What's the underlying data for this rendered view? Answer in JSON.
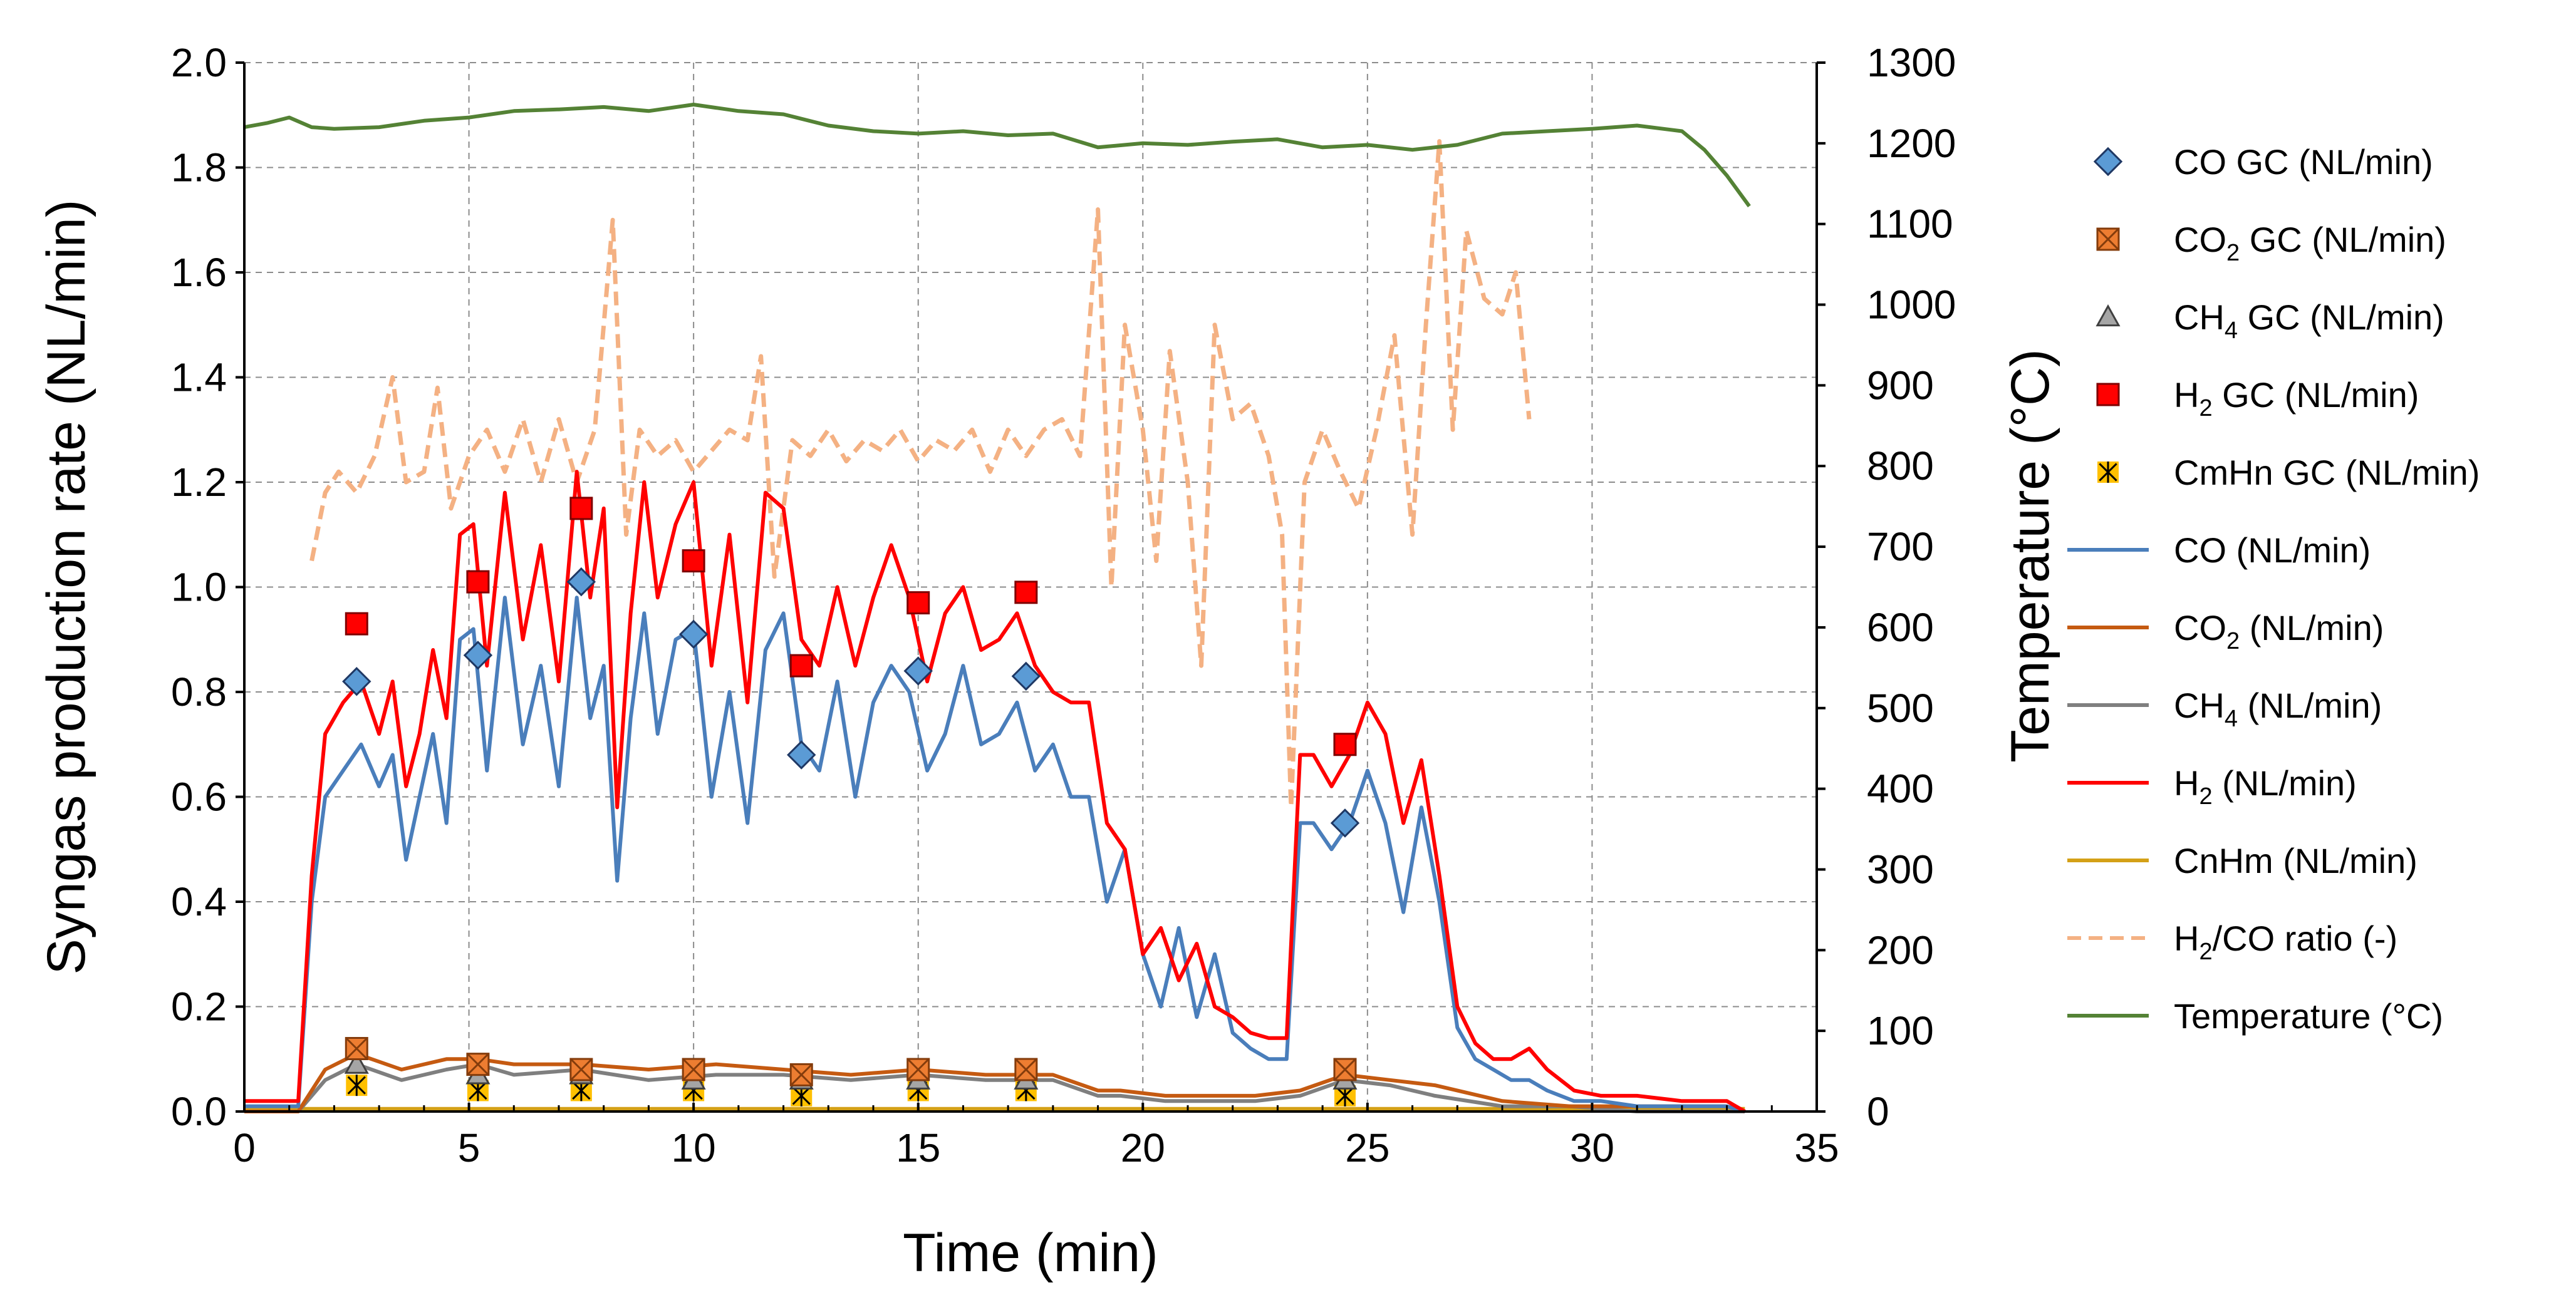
{
  "chart_data": {
    "type": "line",
    "x_axis": {
      "label": "Time (min)",
      "range": [
        0,
        35
      ],
      "ticks": [
        0,
        5,
        10,
        15,
        20,
        25,
        30,
        35
      ]
    },
    "y_axis_left": {
      "label": "Syngas production rate (NL/min)",
      "range": [
        0,
        2.0
      ],
      "ticks": [
        "0.0",
        "0.2",
        "0.4",
        "0.6",
        "0.8",
        "1.0",
        "1.2",
        "1.4",
        "1.6",
        "1.8",
        "2.0"
      ]
    },
    "y_axis_right": {
      "label": "Temperature (°C)",
      "range": [
        0,
        1300
      ],
      "ticks": [
        0,
        100,
        200,
        300,
        400,
        500,
        600,
        700,
        800,
        900,
        1000,
        1100,
        1200,
        1300
      ]
    },
    "grid": true,
    "legend": {
      "position": "right",
      "entries": [
        {
          "key": "co_gc",
          "label": "CO GC (NL/min)",
          "sub": ""
        },
        {
          "key": "co2_gc",
          "label": "CO",
          "sub": "2",
          "suffix": " GC (NL/min)"
        },
        {
          "key": "ch4_gc",
          "label": "CH",
          "sub": "4",
          "suffix": " GC (NL/min)"
        },
        {
          "key": "h2_gc",
          "label": "H",
          "sub": "2",
          "suffix": " GC (NL/min)"
        },
        {
          "key": "cmhn_gc",
          "label": "CmHn GC (NL/min)",
          "sub": ""
        },
        {
          "key": "co",
          "label": "CO (NL/min)",
          "sub": ""
        },
        {
          "key": "co2",
          "label": "CO",
          "sub": "2",
          "suffix": " (NL/min)"
        },
        {
          "key": "ch4",
          "label": "CH",
          "sub": "4",
          "suffix": " (NL/min)"
        },
        {
          "key": "h2",
          "label": "H",
          "sub": "2",
          "suffix": " (NL/min)"
        },
        {
          "key": "cnhm",
          "label": "CnHm (NL/min)",
          "sub": ""
        },
        {
          "key": "ratio",
          "label": "H",
          "sub": "2",
          "suffix": "/CO ratio (-)"
        },
        {
          "key": "temp",
          "label": "Temperature (°C)",
          "sub": ""
        }
      ]
    },
    "colors": {
      "co": "#4a7ebb",
      "co2": "#c55a11",
      "ch4": "#7f7f7f",
      "h2": "#ff0000",
      "cnhm": "#d4a017",
      "ratio": "#f4b183",
      "temp": "#548235",
      "co_gc": "#5b9bd5",
      "co2_gc": "#ed7d31",
      "ch4_gc": "#a5a5a5",
      "h2_gc": "#ff0000",
      "cmhn_gc": "#ffc000"
    },
    "series_lines": {
      "co": {
        "axis": "left",
        "x": [
          0,
          1.2,
          1.5,
          1.8,
          2.2,
          2.6,
          3.0,
          3.3,
          3.6,
          3.9,
          4.2,
          4.5,
          4.8,
          5.1,
          5.4,
          5.8,
          6.2,
          6.6,
          7.0,
          7.4,
          7.7,
          8.0,
          8.3,
          8.6,
          8.9,
          9.2,
          9.6,
          10.0,
          10.4,
          10.8,
          11.2,
          11.6,
          12.0,
          12.4,
          12.8,
          13.2,
          13.6,
          14.0,
          14.4,
          14.8,
          15.2,
          15.6,
          16.0,
          16.4,
          16.8,
          17.2,
          17.6,
          18.0,
          18.4,
          18.8,
          19.2,
          19.6,
          20.0,
          20.4,
          20.8,
          21.2,
          21.6,
          22.0,
          22.4,
          22.8,
          23.2,
          23.5,
          23.8,
          24.2,
          24.6,
          25.0,
          25.4,
          25.8,
          26.2,
          26.6,
          27.0,
          27.4,
          27.8,
          28.2,
          28.6,
          29.0,
          29.6,
          30.2,
          31.0,
          32.0,
          33.0,
          33.4
        ],
        "y": [
          0.01,
          0.01,
          0.4,
          0.6,
          0.65,
          0.7,
          0.62,
          0.68,
          0.48,
          0.6,
          0.72,
          0.55,
          0.9,
          0.92,
          0.65,
          0.98,
          0.7,
          0.85,
          0.62,
          0.98,
          0.75,
          0.85,
          0.44,
          0.75,
          0.95,
          0.72,
          0.9,
          0.92,
          0.6,
          0.8,
          0.55,
          0.88,
          0.95,
          0.7,
          0.65,
          0.82,
          0.6,
          0.78,
          0.85,
          0.8,
          0.65,
          0.72,
          0.85,
          0.7,
          0.72,
          0.78,
          0.65,
          0.7,
          0.6,
          0.6,
          0.4,
          0.5,
          0.3,
          0.2,
          0.35,
          0.18,
          0.3,
          0.15,
          0.12,
          0.1,
          0.1,
          0.55,
          0.55,
          0.5,
          0.55,
          0.65,
          0.55,
          0.38,
          0.58,
          0.4,
          0.16,
          0.1,
          0.08,
          0.06,
          0.06,
          0.04,
          0.02,
          0.02,
          0.01,
          0.01,
          0.01,
          0.0
        ]
      },
      "h2": {
        "axis": "left",
        "x": [
          0,
          1.2,
          1.5,
          1.8,
          2.2,
          2.6,
          3.0,
          3.3,
          3.6,
          3.9,
          4.2,
          4.5,
          4.8,
          5.1,
          5.4,
          5.8,
          6.2,
          6.6,
          7.0,
          7.4,
          7.7,
          8.0,
          8.3,
          8.6,
          8.9,
          9.2,
          9.6,
          10.0,
          10.4,
          10.8,
          11.2,
          11.6,
          12.0,
          12.4,
          12.8,
          13.2,
          13.6,
          14.0,
          14.4,
          14.8,
          15.2,
          15.6,
          16.0,
          16.4,
          16.8,
          17.2,
          17.6,
          18.0,
          18.4,
          18.8,
          19.2,
          19.6,
          20.0,
          20.4,
          20.8,
          21.2,
          21.6,
          22.0,
          22.4,
          22.8,
          23.2,
          23.5,
          23.8,
          24.2,
          24.6,
          25.0,
          25.4,
          25.8,
          26.2,
          26.6,
          27.0,
          27.4,
          27.8,
          28.2,
          28.6,
          29.0,
          29.6,
          30.2,
          31.0,
          32.0,
          33.0,
          33.4
        ],
        "y": [
          0.02,
          0.02,
          0.45,
          0.72,
          0.78,
          0.82,
          0.72,
          0.82,
          0.62,
          0.72,
          0.88,
          0.75,
          1.1,
          1.12,
          0.85,
          1.18,
          0.9,
          1.08,
          0.82,
          1.22,
          0.98,
          1.15,
          0.58,
          0.95,
          1.2,
          0.98,
          1.12,
          1.2,
          0.85,
          1.1,
          0.78,
          1.18,
          1.15,
          0.9,
          0.85,
          1.0,
          0.85,
          0.98,
          1.08,
          0.98,
          0.82,
          0.95,
          1.0,
          0.88,
          0.9,
          0.95,
          0.85,
          0.8,
          0.78,
          0.78,
          0.55,
          0.5,
          0.3,
          0.35,
          0.25,
          0.32,
          0.2,
          0.18,
          0.15,
          0.14,
          0.14,
          0.68,
          0.68,
          0.62,
          0.68,
          0.78,
          0.72,
          0.55,
          0.67,
          0.45,
          0.2,
          0.13,
          0.1,
          0.1,
          0.12,
          0.08,
          0.04,
          0.03,
          0.03,
          0.02,
          0.02,
          0.0
        ]
      },
      "co2": {
        "axis": "left",
        "x": [
          0,
          1.2,
          1.8,
          2.5,
          3.5,
          4.5,
          5.2,
          6.0,
          7.5,
          9.0,
          10.5,
          12.0,
          13.5,
          15.0,
          16.5,
          18.0,
          19.0,
          19.5,
          20.5,
          21.5,
          22.5,
          23.5,
          24.5,
          25.5,
          26.5,
          28.0,
          29.5,
          31.0,
          33.0,
          33.4
        ],
        "y": [
          0.0,
          0.0,
          0.08,
          0.11,
          0.08,
          0.1,
          0.1,
          0.09,
          0.09,
          0.08,
          0.09,
          0.08,
          0.07,
          0.08,
          0.07,
          0.07,
          0.04,
          0.04,
          0.03,
          0.03,
          0.03,
          0.04,
          0.07,
          0.06,
          0.05,
          0.02,
          0.01,
          0.01,
          0.01,
          0.0
        ]
      },
      "ch4": {
        "axis": "left",
        "x": [
          0,
          1.2,
          1.8,
          2.5,
          3.5,
          4.5,
          5.2,
          6.0,
          7.5,
          9.0,
          10.5,
          12.0,
          13.5,
          15.0,
          16.5,
          18.0,
          19.0,
          19.5,
          20.5,
          21.5,
          22.5,
          23.5,
          24.5,
          25.5,
          26.5,
          28.0,
          29.5,
          31.0,
          33.0,
          33.4
        ],
        "y": [
          0.0,
          0.0,
          0.06,
          0.09,
          0.06,
          0.08,
          0.09,
          0.07,
          0.08,
          0.06,
          0.07,
          0.07,
          0.06,
          0.07,
          0.06,
          0.06,
          0.03,
          0.03,
          0.02,
          0.02,
          0.02,
          0.03,
          0.06,
          0.05,
          0.03,
          0.01,
          0.01,
          0.0,
          0.0,
          0.0
        ]
      },
      "cnhm": {
        "axis": "left",
        "x": [
          0,
          33.4
        ],
        "y": [
          0.005,
          0.005
        ]
      },
      "ratio": {
        "axis": "left",
        "x": [
          1.5,
          1.8,
          2.1,
          2.5,
          2.9,
          3.3,
          3.6,
          4.0,
          4.3,
          4.6,
          5.0,
          5.4,
          5.8,
          6.2,
          6.6,
          7.0,
          7.4,
          7.8,
          8.2,
          8.5,
          8.8,
          9.2,
          9.6,
          10.0,
          10.4,
          10.8,
          11.2,
          11.5,
          11.8,
          12.2,
          12.6,
          13.0,
          13.4,
          13.8,
          14.2,
          14.6,
          15.0,
          15.4,
          15.8,
          16.2,
          16.6,
          17.0,
          17.4,
          17.8,
          18.2,
          18.6,
          19.0,
          19.3,
          19.6,
          20.0,
          20.3,
          20.6,
          21.0,
          21.3,
          21.6,
          22.0,
          22.4,
          22.8,
          23.1,
          23.3,
          23.6,
          24.0,
          24.4,
          24.8,
          25.2,
          25.6,
          26.0,
          26.3,
          26.6,
          26.9,
          27.2,
          27.6,
          28.0,
          28.3,
          28.6
        ],
        "y": [
          1.05,
          1.18,
          1.22,
          1.18,
          1.25,
          1.4,
          1.2,
          1.22,
          1.38,
          1.15,
          1.25,
          1.3,
          1.22,
          1.32,
          1.2,
          1.32,
          1.2,
          1.3,
          1.7,
          1.1,
          1.3,
          1.25,
          1.28,
          1.22,
          1.26,
          1.3,
          1.28,
          1.44,
          1.02,
          1.28,
          1.25,
          1.3,
          1.24,
          1.28,
          1.26,
          1.3,
          1.24,
          1.28,
          1.26,
          1.3,
          1.22,
          1.3,
          1.25,
          1.3,
          1.32,
          1.25,
          1.72,
          1.0,
          1.5,
          1.3,
          1.05,
          1.45,
          1.2,
          0.85,
          1.5,
          1.32,
          1.35,
          1.25,
          1.1,
          0.58,
          1.2,
          1.3,
          1.22,
          1.15,
          1.3,
          1.48,
          1.1,
          1.5,
          1.85,
          1.3,
          1.68,
          1.55,
          1.52,
          1.6,
          1.32
        ]
      },
      "temp": {
        "axis": "right",
        "x": [
          0,
          0.5,
          1,
          1.5,
          2,
          3,
          4,
          5,
          6,
          7,
          8,
          9,
          10,
          11,
          12,
          13,
          14,
          15,
          16,
          17,
          18,
          19,
          20,
          21,
          22,
          23,
          24,
          25,
          26,
          27,
          28,
          29,
          30,
          31,
          32,
          32.5,
          33,
          33.5
        ],
        "y": [
          1220,
          1225,
          1232,
          1220,
          1218,
          1220,
          1228,
          1232,
          1240,
          1242,
          1245,
          1240,
          1248,
          1240,
          1236,
          1222,
          1215,
          1212,
          1215,
          1210,
          1212,
          1195,
          1200,
          1198,
          1202,
          1205,
          1195,
          1198,
          1192,
          1198,
          1212,
          1215,
          1218,
          1222,
          1215,
          1192,
          1160,
          1122
        ]
      }
    },
    "series_markers": {
      "co_gc": {
        "x": [
          2.5,
          5.2,
          7.5,
          10.0,
          12.4,
          15.0,
          17.4,
          24.5
        ],
        "y": [
          0.82,
          0.87,
          1.01,
          0.91,
          0.68,
          0.84,
          0.83,
          0.55
        ]
      },
      "h2_gc": {
        "x": [
          2.5,
          5.2,
          7.5,
          10.0,
          12.4,
          15.0,
          17.4,
          24.5
        ],
        "y": [
          0.93,
          1.01,
          1.15,
          1.05,
          0.85,
          0.97,
          0.99,
          0.7
        ]
      },
      "co2_gc": {
        "x": [
          2.5,
          5.2,
          7.5,
          10.0,
          12.4,
          15.0,
          17.4,
          24.5
        ],
        "y": [
          0.12,
          0.09,
          0.08,
          0.08,
          0.07,
          0.08,
          0.08,
          0.08
        ]
      },
      "ch4_gc": {
        "x": [
          2.5,
          5.2,
          7.5,
          10.0,
          12.4,
          15.0,
          17.4,
          24.5
        ],
        "y": [
          0.09,
          0.07,
          0.07,
          0.06,
          0.06,
          0.06,
          0.06,
          0.06
        ]
      },
      "cmhn_gc": {
        "x": [
          2.5,
          5.2,
          7.5,
          10.0,
          12.4,
          15.0,
          17.4,
          24.5
        ],
        "y": [
          0.05,
          0.04,
          0.04,
          0.04,
          0.03,
          0.04,
          0.04,
          0.03
        ]
      }
    }
  }
}
